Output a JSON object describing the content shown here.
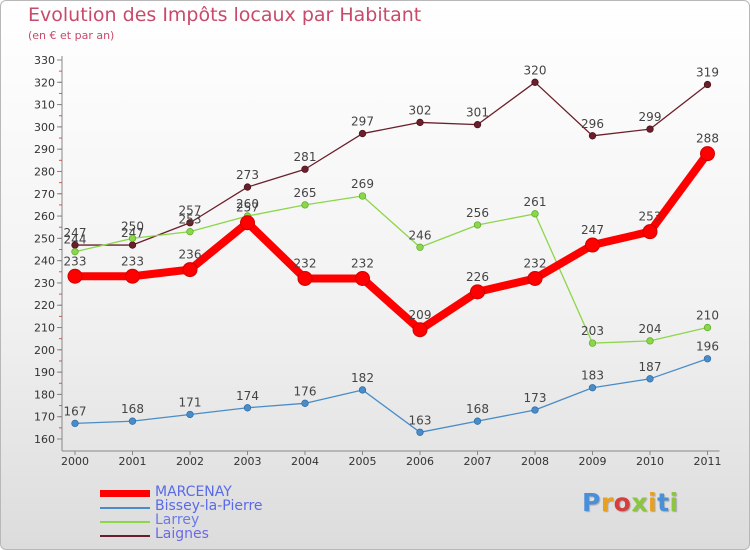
{
  "header": {
    "title": "Evolution des Impôts locaux par Habitant",
    "subtitle": "(en € et par an)"
  },
  "logo": {
    "letters": [
      "P",
      "r",
      "o",
      "x",
      "i",
      "t",
      "i"
    ],
    "colors": [
      "#4a90d9",
      "#e8a020",
      "#d43f3f",
      "#8cc63f",
      "#e8a020",
      "#4a90d9",
      "#8cc63f"
    ]
  },
  "chart_data": {
    "type": "line",
    "title": "Evolution des Impôts locaux par Habitant",
    "subtitle": "(en € et par an)",
    "xlabel": "",
    "ylabel": "",
    "x": [
      "2000",
      "2001",
      "2002",
      "2003",
      "2004",
      "2005",
      "2006",
      "2007",
      "2008",
      "2009",
      "2010",
      "2011"
    ],
    "ylim": [
      160,
      330
    ],
    "yticks": [
      160,
      170,
      180,
      190,
      200,
      210,
      220,
      230,
      240,
      250,
      260,
      270,
      280,
      290,
      300,
      310,
      320,
      330
    ],
    "grid": false,
    "legend_position": "bottom-left",
    "series": [
      {
        "name": "Laignes",
        "color": "#6b1f2a",
        "values": [
          247,
          247,
          257,
          273,
          281,
          297,
          302,
          301,
          320,
          296,
          299,
          319
        ]
      },
      {
        "name": "Larrey",
        "color": "#8cd64a",
        "values": [
          244,
          250,
          253,
          260,
          265,
          269,
          246,
          256,
          261,
          203,
          204,
          210
        ]
      },
      {
        "name": "Bissey-la-Pierre",
        "color": "#4a8cc8",
        "values": [
          167,
          168,
          171,
          174,
          176,
          182,
          163,
          168,
          173,
          183,
          187,
          196
        ]
      },
      {
        "name": "MARCENAY",
        "color": "#ff0000",
        "values": [
          233,
          233,
          236,
          257,
          232,
          232,
          209,
          226,
          232,
          247,
          253,
          288
        ]
      }
    ],
    "legend_order": [
      "MARCENAY",
      "Bissey-la-Pierre",
      "Larrey",
      "Laignes"
    ]
  }
}
